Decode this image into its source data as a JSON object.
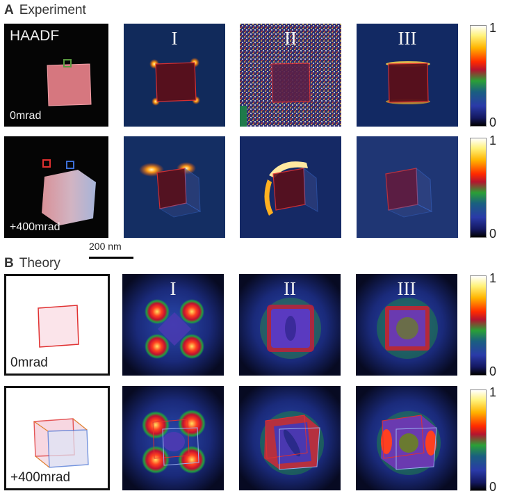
{
  "section_a": {
    "letter": "A",
    "title": "Experiment"
  },
  "section_b": {
    "letter": "B",
    "title": "Theory"
  },
  "experiment": {
    "haadf_label": "HAADF",
    "row1_angle": "0mrad",
    "row2_angle": "+400mrad",
    "columns": [
      "I",
      "II",
      "III"
    ]
  },
  "scale_bar": "200 nm",
  "theory": {
    "columns": [
      "I",
      "II",
      "III"
    ],
    "row1_angle": "0mrad",
    "row2_angle": "+400mrad"
  },
  "colorbar": {
    "max_label": "1",
    "min_label": "0"
  },
  "colors": {
    "cube_red": "#e03030",
    "cube_blue": "#3d6fd6",
    "marker_green": "#5a9a40",
    "map_background": "#0b1030"
  }
}
